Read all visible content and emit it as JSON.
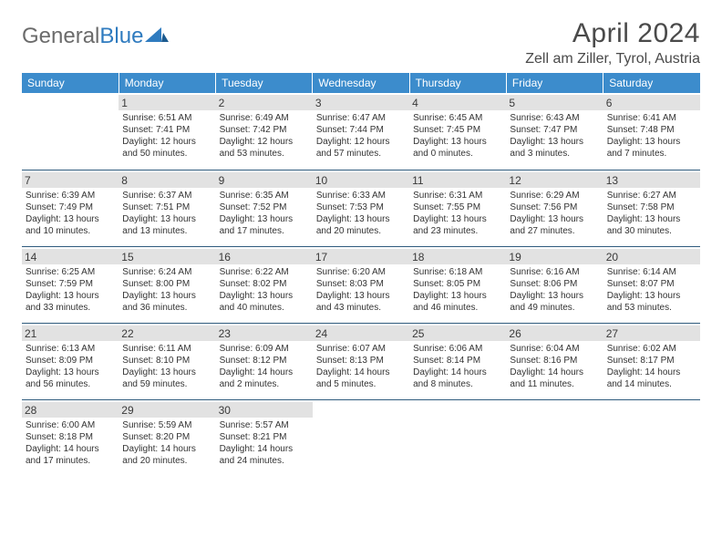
{
  "logo": {
    "text1": "General",
    "text2": "Blue"
  },
  "title": "April 2024",
  "location": "Zell am Ziller, Tyrol, Austria",
  "headers": [
    "Sunday",
    "Monday",
    "Tuesday",
    "Wednesday",
    "Thursday",
    "Friday",
    "Saturday"
  ],
  "colors": {
    "header_bg": "#3c8ccc",
    "header_text": "#ffffff",
    "daynum_bg": "#e2e2e2",
    "border": "#2f5b7d",
    "logo_gray": "#6b6b6b",
    "logo_blue": "#2f7bbf"
  },
  "weeks": [
    [
      null,
      {
        "n": "1",
        "sr": "6:51 AM",
        "ss": "7:41 PM",
        "d1": "12 hours",
        "d2": "and 50 minutes."
      },
      {
        "n": "2",
        "sr": "6:49 AM",
        "ss": "7:42 PM",
        "d1": "12 hours",
        "d2": "and 53 minutes."
      },
      {
        "n": "3",
        "sr": "6:47 AM",
        "ss": "7:44 PM",
        "d1": "12 hours",
        "d2": "and 57 minutes."
      },
      {
        "n": "4",
        "sr": "6:45 AM",
        "ss": "7:45 PM",
        "d1": "13 hours",
        "d2": "and 0 minutes."
      },
      {
        "n": "5",
        "sr": "6:43 AM",
        "ss": "7:47 PM",
        "d1": "13 hours",
        "d2": "and 3 minutes."
      },
      {
        "n": "6",
        "sr": "6:41 AM",
        "ss": "7:48 PM",
        "d1": "13 hours",
        "d2": "and 7 minutes."
      }
    ],
    [
      {
        "n": "7",
        "sr": "6:39 AM",
        "ss": "7:49 PM",
        "d1": "13 hours",
        "d2": "and 10 minutes."
      },
      {
        "n": "8",
        "sr": "6:37 AM",
        "ss": "7:51 PM",
        "d1": "13 hours",
        "d2": "and 13 minutes."
      },
      {
        "n": "9",
        "sr": "6:35 AM",
        "ss": "7:52 PM",
        "d1": "13 hours",
        "d2": "and 17 minutes."
      },
      {
        "n": "10",
        "sr": "6:33 AM",
        "ss": "7:53 PM",
        "d1": "13 hours",
        "d2": "and 20 minutes."
      },
      {
        "n": "11",
        "sr": "6:31 AM",
        "ss": "7:55 PM",
        "d1": "13 hours",
        "d2": "and 23 minutes."
      },
      {
        "n": "12",
        "sr": "6:29 AM",
        "ss": "7:56 PM",
        "d1": "13 hours",
        "d2": "and 27 minutes."
      },
      {
        "n": "13",
        "sr": "6:27 AM",
        "ss": "7:58 PM",
        "d1": "13 hours",
        "d2": "and 30 minutes."
      }
    ],
    [
      {
        "n": "14",
        "sr": "6:25 AM",
        "ss": "7:59 PM",
        "d1": "13 hours",
        "d2": "and 33 minutes."
      },
      {
        "n": "15",
        "sr": "6:24 AM",
        "ss": "8:00 PM",
        "d1": "13 hours",
        "d2": "and 36 minutes."
      },
      {
        "n": "16",
        "sr": "6:22 AM",
        "ss": "8:02 PM",
        "d1": "13 hours",
        "d2": "and 40 minutes."
      },
      {
        "n": "17",
        "sr": "6:20 AM",
        "ss": "8:03 PM",
        "d1": "13 hours",
        "d2": "and 43 minutes."
      },
      {
        "n": "18",
        "sr": "6:18 AM",
        "ss": "8:05 PM",
        "d1": "13 hours",
        "d2": "and 46 minutes."
      },
      {
        "n": "19",
        "sr": "6:16 AM",
        "ss": "8:06 PM",
        "d1": "13 hours",
        "d2": "and 49 minutes."
      },
      {
        "n": "20",
        "sr": "6:14 AM",
        "ss": "8:07 PM",
        "d1": "13 hours",
        "d2": "and 53 minutes."
      }
    ],
    [
      {
        "n": "21",
        "sr": "6:13 AM",
        "ss": "8:09 PM",
        "d1": "13 hours",
        "d2": "and 56 minutes."
      },
      {
        "n": "22",
        "sr": "6:11 AM",
        "ss": "8:10 PM",
        "d1": "13 hours",
        "d2": "and 59 minutes."
      },
      {
        "n": "23",
        "sr": "6:09 AM",
        "ss": "8:12 PM",
        "d1": "14 hours",
        "d2": "and 2 minutes."
      },
      {
        "n": "24",
        "sr": "6:07 AM",
        "ss": "8:13 PM",
        "d1": "14 hours",
        "d2": "and 5 minutes."
      },
      {
        "n": "25",
        "sr": "6:06 AM",
        "ss": "8:14 PM",
        "d1": "14 hours",
        "d2": "and 8 minutes."
      },
      {
        "n": "26",
        "sr": "6:04 AM",
        "ss": "8:16 PM",
        "d1": "14 hours",
        "d2": "and 11 minutes."
      },
      {
        "n": "27",
        "sr": "6:02 AM",
        "ss": "8:17 PM",
        "d1": "14 hours",
        "d2": "and 14 minutes."
      }
    ],
    [
      {
        "n": "28",
        "sr": "6:00 AM",
        "ss": "8:18 PM",
        "d1": "14 hours",
        "d2": "and 17 minutes."
      },
      {
        "n": "29",
        "sr": "5:59 AM",
        "ss": "8:20 PM",
        "d1": "14 hours",
        "d2": "and 20 minutes."
      },
      {
        "n": "30",
        "sr": "5:57 AM",
        "ss": "8:21 PM",
        "d1": "14 hours",
        "d2": "and 24 minutes."
      },
      null,
      null,
      null,
      null
    ]
  ],
  "labels": {
    "sunrise_prefix": "Sunrise: ",
    "sunset_prefix": "Sunset: ",
    "daylight_prefix": "Daylight: "
  }
}
